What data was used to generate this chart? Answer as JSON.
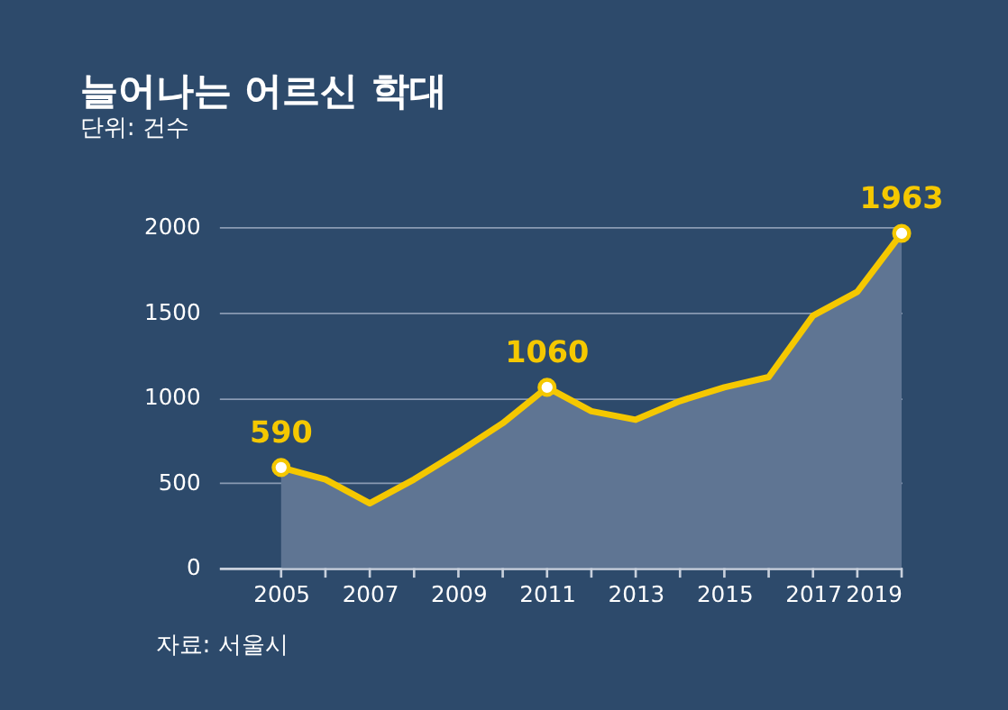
{
  "chart_data": {
    "type": "area",
    "title": "늘어나는 어르신 학대",
    "subtitle": "단위: 건수",
    "annotations": [
      "자료: 서울시"
    ],
    "x": [
      2005,
      2006,
      2007,
      2008,
      2009,
      2010,
      2011,
      2012,
      2013,
      2014,
      2015,
      2016,
      2017,
      2018,
      2019
    ],
    "series": [
      {
        "color": "#5f7593",
        "values": [
          590,
          520,
          380,
          520,
          680,
          850,
          1060,
          920,
          870,
          980,
          1060,
          1120,
          1480,
          1620,
          1963
        ]
      },
      {
        "type": "line",
        "color": "#f5c800",
        "values": [
          590,
          520,
          380,
          520,
          680,
          850,
          1060,
          920,
          870,
          980,
          1060,
          1120,
          1480,
          1620,
          1963
        ],
        "value_labels": [
          "590",
          null,
          null,
          null,
          null,
          null,
          "1060",
          null,
          null,
          null,
          null,
          null,
          null,
          null,
          "1963"
        ]
      }
    ],
    "xlim": [
      2003.6,
      2019
    ],
    "xticks": [
      2005,
      {
        "value": 2006,
        "label": null
      },
      2007,
      {
        "value": 2008,
        "label": null
      },
      2009,
      {
        "value": 2010,
        "label": null
      },
      2011,
      {
        "value": 2012,
        "label": null
      },
      2013,
      {
        "value": 2014,
        "label": null
      },
      2015,
      {
        "value": 2016,
        "label": null
      },
      2017,
      {
        "value": 2018,
        "label": null
      },
      2019
    ],
    "ylim": [
      0,
      2000
    ],
    "yticks": [
      0,
      500,
      1000,
      1500,
      2000
    ],
    "grid": "y",
    "line_style": "solid"
  }
}
